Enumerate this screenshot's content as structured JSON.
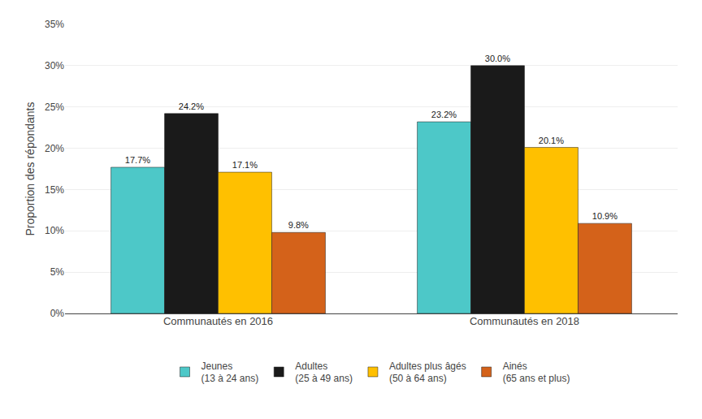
{
  "chart_data": {
    "type": "bar",
    "categories": [
      "Communautés en 2016",
      "Communautés en 2018"
    ],
    "series": [
      {
        "name": "Jeunes\n(13 à 24 ans)",
        "color": "#4DC8C8",
        "values": [
          17.7,
          23.2
        ],
        "value_labels": [
          "17.7%",
          "23.2%"
        ]
      },
      {
        "name": "Adultes\n(25 à 49 ans)",
        "color": "#1A1A1A",
        "values": [
          24.2,
          30.0
        ],
        "value_labels": [
          "24.2%",
          "30.0%"
        ]
      },
      {
        "name": "Adultes plus âgés\n(50 à 64 ans)",
        "color": "#FFC000",
        "values": [
          17.1,
          20.1
        ],
        "value_labels": [
          "17.1%",
          "20.1%"
        ]
      },
      {
        "name": "Ainés\n(65 ans et plus)",
        "color": "#D4621A",
        "values": [
          9.8,
          10.9
        ],
        "value_labels": [
          "9.8%",
          "10.9%"
        ]
      }
    ],
    "ylabel": "Proportion des répondants",
    "ylim": [
      0,
      35
    ],
    "yticks": [
      {
        "value": 0,
        "label": "0%"
      },
      {
        "value": 5,
        "label": "5%"
      },
      {
        "value": 10,
        "label": "10%"
      },
      {
        "value": 15,
        "label": "15%"
      },
      {
        "value": 20,
        "label": "20%"
      },
      {
        "value": 25,
        "label": "25%"
      },
      {
        "value": 30,
        "label": "30%"
      },
      {
        "value": 35,
        "label": "35%"
      }
    ],
    "grid": true,
    "legend": "bottom",
    "data_labels": true
  }
}
